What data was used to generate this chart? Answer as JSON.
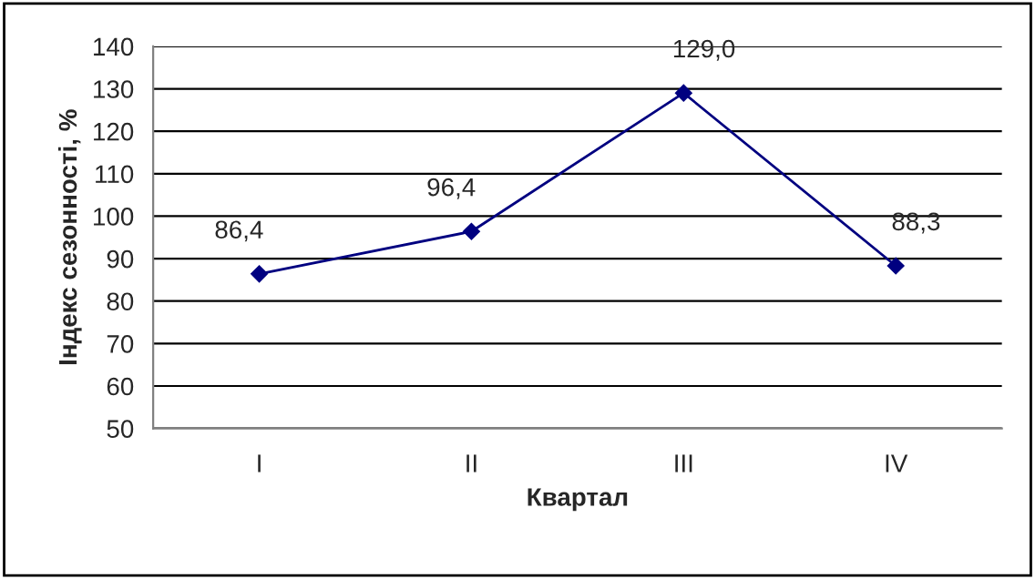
{
  "chart_data": {
    "type": "line",
    "xlabel": "Квартал",
    "ylabel": "Індекс сезонності, %",
    "categories": [
      "I",
      "II",
      "III",
      "IV"
    ],
    "series": [
      {
        "color": "#000080",
        "values": [
          86.4,
          96.4,
          129.0,
          88.3
        ],
        "value_labels": [
          "86,4",
          "96,4",
          "129,0",
          "88,3"
        ]
      }
    ],
    "ylim": [
      50,
      140
    ],
    "yticks": [
      50,
      60,
      70,
      80,
      90,
      100,
      110,
      120,
      130,
      140
    ],
    "grid": "y",
    "marker": "diamond",
    "line_style": "solid",
    "legend": false
  }
}
